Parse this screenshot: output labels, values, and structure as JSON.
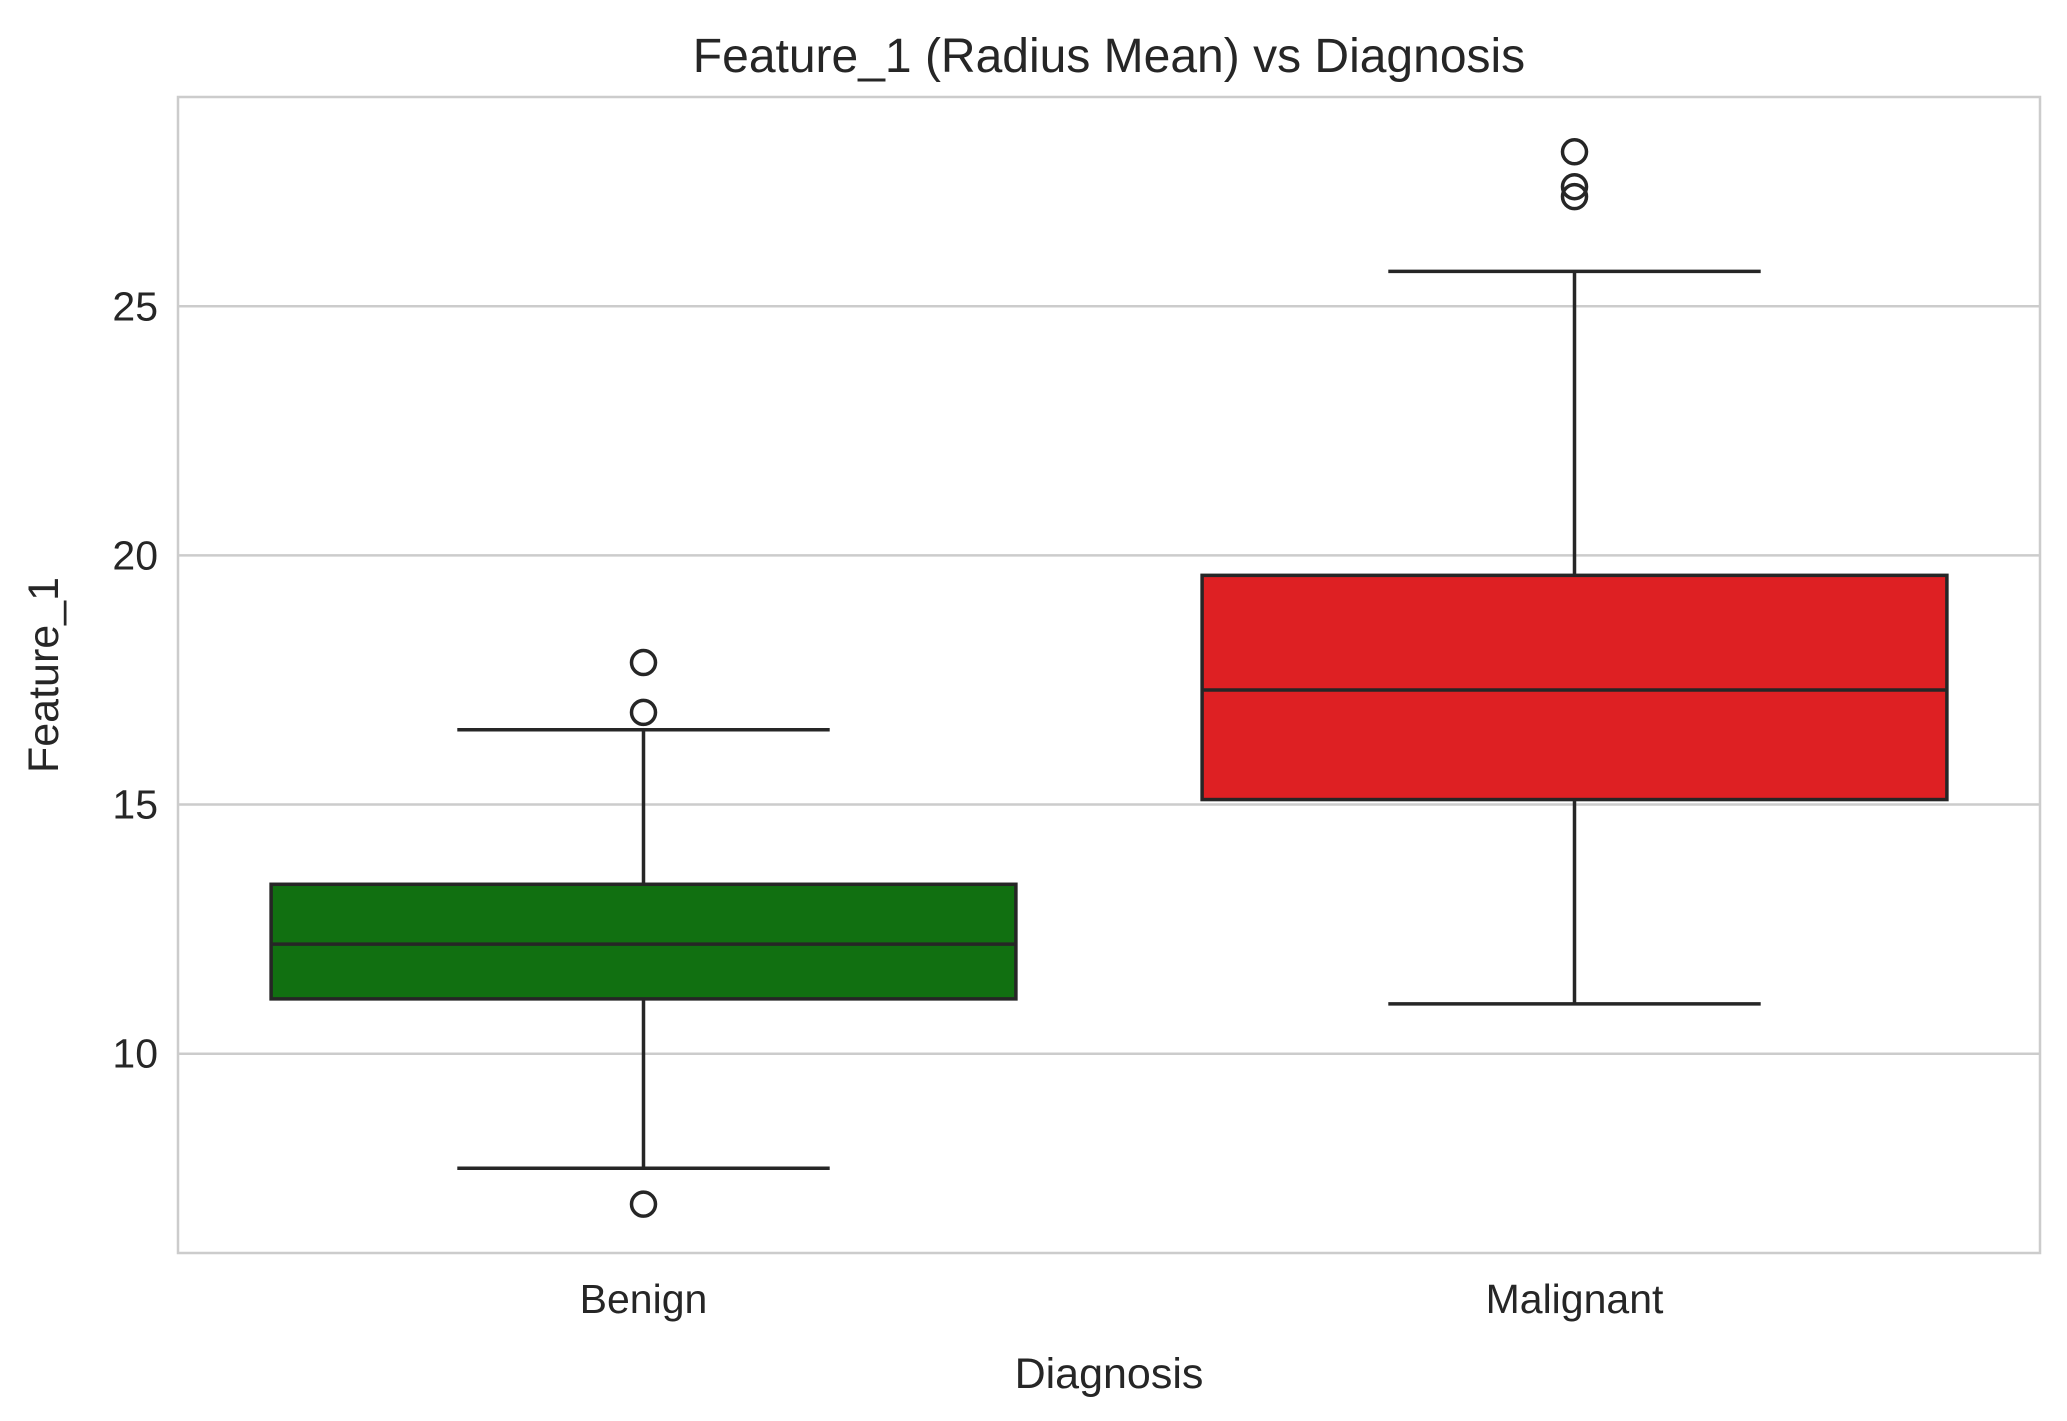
{
  "chart_data": {
    "type": "box",
    "title": "Feature_1 (Radius Mean) vs Diagnosis",
    "xlabel": "Diagnosis",
    "ylabel": "Feature_1",
    "ylim": [
      6,
      29.2
    ],
    "yticks": [
      10,
      15,
      20,
      25
    ],
    "grid": "horizontal",
    "categories": [
      "Benign",
      "Malignant"
    ],
    "boxes": [
      {
        "category": "Benign",
        "color": "#117011",
        "whisker_low": 7.7,
        "q1": 11.1,
        "median": 12.2,
        "q3": 13.4,
        "whisker_high": 16.5,
        "outliers": [
          17.85,
          16.85,
          6.98
        ]
      },
      {
        "category": "Malignant",
        "color": "#de2023",
        "whisker_low": 11.0,
        "q1": 15.1,
        "median": 17.3,
        "q3": 19.6,
        "whisker_high": 25.7,
        "outliers": [
          28.1,
          27.4,
          27.2
        ]
      }
    ]
  }
}
